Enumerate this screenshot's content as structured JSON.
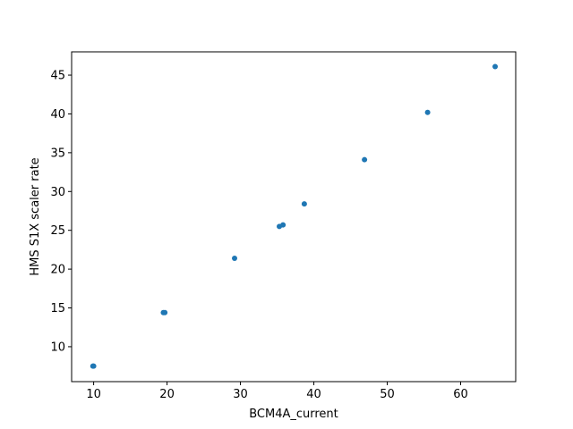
{
  "chart_data": {
    "type": "scatter",
    "title": "",
    "xlabel": "BCM4A_current",
    "ylabel": "HMS S1X scaler rate",
    "xlim": [
      7.0,
      67.5
    ],
    "ylim": [
      5.5,
      48.0
    ],
    "xticks": [
      10,
      20,
      30,
      40,
      50,
      60
    ],
    "yticks": [
      10,
      15,
      20,
      25,
      30,
      35,
      40,
      45
    ],
    "grid": false,
    "legend": "none",
    "marker_color": "#1f77b4",
    "series": [
      {
        "name": "HMS S1X scaler rate",
        "x": [
          9.9,
          10.0,
          19.5,
          19.7,
          29.2,
          35.3,
          35.8,
          38.7,
          46.9,
          55.5,
          64.7
        ],
        "y": [
          7.5,
          7.5,
          14.4,
          14.4,
          21.4,
          25.5,
          25.7,
          28.4,
          34.1,
          40.2,
          46.1
        ]
      }
    ]
  }
}
